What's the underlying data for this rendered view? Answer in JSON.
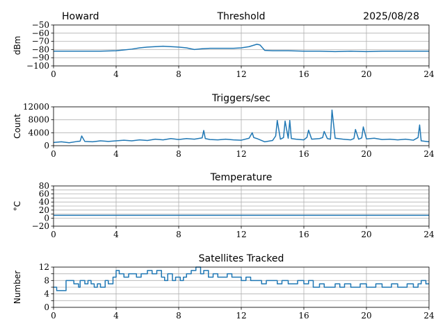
{
  "header": {
    "left": "Howard",
    "right": "2025/08/28"
  },
  "chart_data": [
    {
      "type": "line",
      "title": "Threshold",
      "xlabel": "",
      "ylabel": "dBm",
      "xlim": [
        0,
        24
      ],
      "ylim": [
        -100,
        -50
      ],
      "xticks": [
        0,
        4,
        8,
        12,
        16,
        20,
        24
      ],
      "yticks": [
        -100,
        -90,
        -80,
        -70,
        -60,
        -50
      ],
      "yticklabels": [
        "−100",
        "−90",
        "−80",
        "−70",
        "−60",
        "−50"
      ],
      "grid": true,
      "series": [
        {
          "color": "#1f77b4",
          "x": [
            0,
            1,
            2,
            3,
            4,
            4.5,
            5,
            5.5,
            6,
            6.5,
            7,
            7.5,
            8,
            8.5,
            9,
            9.5,
            10,
            10.5,
            11,
            11.5,
            12,
            12.5,
            13.0,
            13.2,
            13.5,
            14,
            15,
            16,
            17,
            18,
            19,
            20,
            21,
            22,
            23,
            24
          ],
          "y": [
            -82,
            -82,
            -82,
            -82,
            -81.5,
            -80.5,
            -79.5,
            -78,
            -77,
            -76.5,
            -76,
            -76.5,
            -77,
            -78,
            -80,
            -79,
            -78.5,
            -78.5,
            -78.5,
            -78.5,
            -78,
            -76.5,
            -73.5,
            -74.5,
            -81,
            -81.5,
            -81.5,
            -82,
            -82,
            -82.5,
            -82,
            -82.5,
            -82,
            -82,
            -82,
            -82
          ]
        }
      ]
    },
    {
      "type": "line",
      "title": "Triggers/sec",
      "xlabel": "",
      "ylabel": "Count",
      "xlim": [
        0,
        24
      ],
      "ylim": [
        0,
        12000
      ],
      "xticks": [
        0,
        4,
        8,
        12,
        16,
        20,
        24
      ],
      "yticks": [
        0,
        4000,
        8000,
        12000
      ],
      "yticklabels": [
        "0",
        "4000",
        "8000",
        "12000"
      ],
      "grid": true,
      "series": [
        {
          "color": "#1f77b4",
          "x": [
            0,
            0.5,
            1,
            1.5,
            1.7,
            1.8,
            2,
            2.5,
            3,
            3.3,
            3.5,
            4,
            4.5,
            5,
            5.5,
            6,
            6.5,
            7,
            7.5,
            8,
            8.5,
            9,
            9.5,
            9.6,
            9.7,
            10,
            10.5,
            11,
            11.5,
            12,
            12.5,
            12.7,
            12.8,
            13,
            13.5,
            14,
            14.2,
            14.3,
            14.5,
            14.7,
            14.8,
            15,
            15.1,
            15.2,
            15.5,
            16,
            16.2,
            16.3,
            16.5,
            17,
            17.2,
            17.3,
            17.5,
            17.7,
            17.8,
            18,
            18.5,
            19,
            19.2,
            19.3,
            19.5,
            19.7,
            19.8,
            20,
            20.5,
            21,
            21.5,
            22,
            22.5,
            23,
            23.3,
            23.4,
            23.5,
            24
          ],
          "y": [
            1000,
            1200,
            900,
            1300,
            1400,
            3000,
            1300,
            1200,
            1500,
            1400,
            1300,
            1500,
            1700,
            1500,
            1800,
            1600,
            2000,
            1800,
            2200,
            1900,
            2200,
            2000,
            2400,
            4700,
            2200,
            1900,
            1800,
            2000,
            1800,
            1700,
            2300,
            4000,
            2500,
            2200,
            1200,
            1600,
            3000,
            7800,
            2000,
            2500,
            7600,
            2300,
            7800,
            2200,
            2000,
            1800,
            2600,
            4800,
            2000,
            2200,
            2500,
            4400,
            2200,
            2000,
            11000,
            2300,
            2000,
            1800,
            2200,
            5000,
            2000,
            2400,
            5800,
            2100,
            2300,
            1900,
            2000,
            1800,
            2000,
            1700,
            2500,
            6400,
            1500,
            1200
          ]
        }
      ]
    },
    {
      "type": "line",
      "title": "Temperature",
      "xlabel": "",
      "ylabel": "°C",
      "xlim": [
        0,
        24
      ],
      "ylim": [
        -20,
        80
      ],
      "xticks": [
        0,
        4,
        8,
        12,
        16,
        20,
        24
      ],
      "yticks": [
        -20,
        0,
        20,
        40,
        60,
        80
      ],
      "yticklabels": [
        "−20",
        "0",
        "20",
        "40",
        "60",
        "80"
      ],
      "extra_yticks": [
        10,
        30,
        50,
        70
      ],
      "grid": true,
      "series": [
        {
          "color": "#1f77b4",
          "x": [
            0,
            24
          ],
          "y": [
            7,
            7
          ]
        }
      ]
    },
    {
      "type": "line",
      "title": "Satellites Tracked",
      "xlabel": "",
      "ylabel": "Number",
      "xlim": [
        0,
        24
      ],
      "ylim": [
        0,
        12
      ],
      "xticks": [
        0,
        4,
        8,
        12,
        16,
        20,
        24
      ],
      "yticks": [
        0,
        4,
        8,
        12
      ],
      "yticklabels": [
        "0",
        "4",
        "8",
        "12"
      ],
      "extra_yticks": [
        2,
        6,
        10
      ],
      "grid": true,
      "series": [
        {
          "color": "#1f77b4",
          "step": true,
          "x": [
            0,
            0.2,
            0.7,
            0.8,
            1.3,
            1.6,
            1.7,
            2.0,
            2.2,
            2.4,
            2.6,
            2.8,
            3.0,
            3.3,
            3.5,
            3.8,
            4.0,
            4.2,
            4.5,
            4.8,
            5.0,
            5.3,
            5.6,
            6.0,
            6.3,
            6.6,
            6.9,
            7.1,
            7.3,
            7.6,
            7.8,
            8.1,
            8.3,
            8.5,
            8.8,
            9.1,
            9.4,
            9.6,
            9.9,
            10.2,
            10.5,
            10.8,
            11.1,
            11.4,
            11.7,
            12.0,
            12.3,
            12.6,
            13.0,
            13.3,
            13.6,
            14.0,
            14.3,
            14.6,
            15.0,
            15.3,
            15.6,
            16.0,
            16.3,
            16.6,
            17.0,
            17.3,
            17.6,
            18.0,
            18.3,
            18.6,
            19.0,
            19.3,
            19.6,
            20.0,
            20.3,
            20.6,
            21.0,
            21.3,
            21.6,
            22.0,
            22.3,
            22.6,
            23.0,
            23.3,
            23.5,
            23.8,
            24
          ],
          "y": [
            6,
            5,
            5,
            8,
            7,
            6,
            8,
            7,
            8,
            7,
            6,
            7,
            6,
            8,
            7,
            9,
            11,
            10,
            9,
            10,
            10,
            9,
            10,
            11,
            10,
            11,
            9,
            8,
            10,
            8,
            9,
            8,
            9,
            10,
            11,
            12,
            10,
            11,
            9,
            10,
            9,
            9,
            10,
            9,
            9,
            8,
            9,
            8,
            8,
            7,
            8,
            8,
            7,
            8,
            7,
            7,
            8,
            7,
            8,
            6,
            7,
            6,
            6,
            7,
            6,
            7,
            6,
            6,
            7,
            6,
            6,
            7,
            6,
            6,
            7,
            6,
            6,
            7,
            6,
            7,
            8,
            7,
            7
          ]
        }
      ]
    }
  ]
}
